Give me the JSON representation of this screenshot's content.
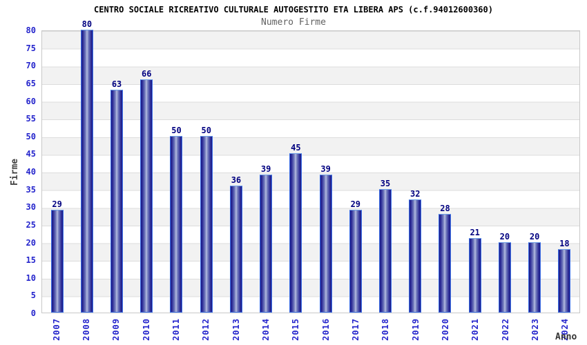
{
  "chart_data": {
    "type": "bar",
    "title": "CENTRO SOCIALE RICREATIVO CULTURALE AUTOGESTITO ETA LIBERA APS (c.f.94012600360)",
    "subtitle": "Numero Firme",
    "xlabel": "Anno",
    "ylabel": "Firme",
    "categories": [
      "2007",
      "2008",
      "2009",
      "2010",
      "2011",
      "2012",
      "2013",
      "2014",
      "2015",
      "2016",
      "2017",
      "2018",
      "2019",
      "2020",
      "2021",
      "2022",
      "2023",
      "2024"
    ],
    "values": [
      29,
      80,
      63,
      66,
      50,
      50,
      36,
      39,
      45,
      39,
      29,
      35,
      32,
      28,
      21,
      20,
      20,
      18
    ],
    "ylim": [
      0,
      80
    ],
    "ytick_step": 5,
    "grid": true,
    "legend_position": "none",
    "colors": {
      "bar_border": "#3a6ee8",
      "bar_dark": "#1b1b86",
      "bar_light": "#b7bfe2",
      "value_label": "#000080",
      "tick_label": "#2424cc",
      "band_gray": "#f2f2f2",
      "gridline": "#dcdcdc",
      "title": "#000000",
      "subtitle": "#606060"
    }
  }
}
